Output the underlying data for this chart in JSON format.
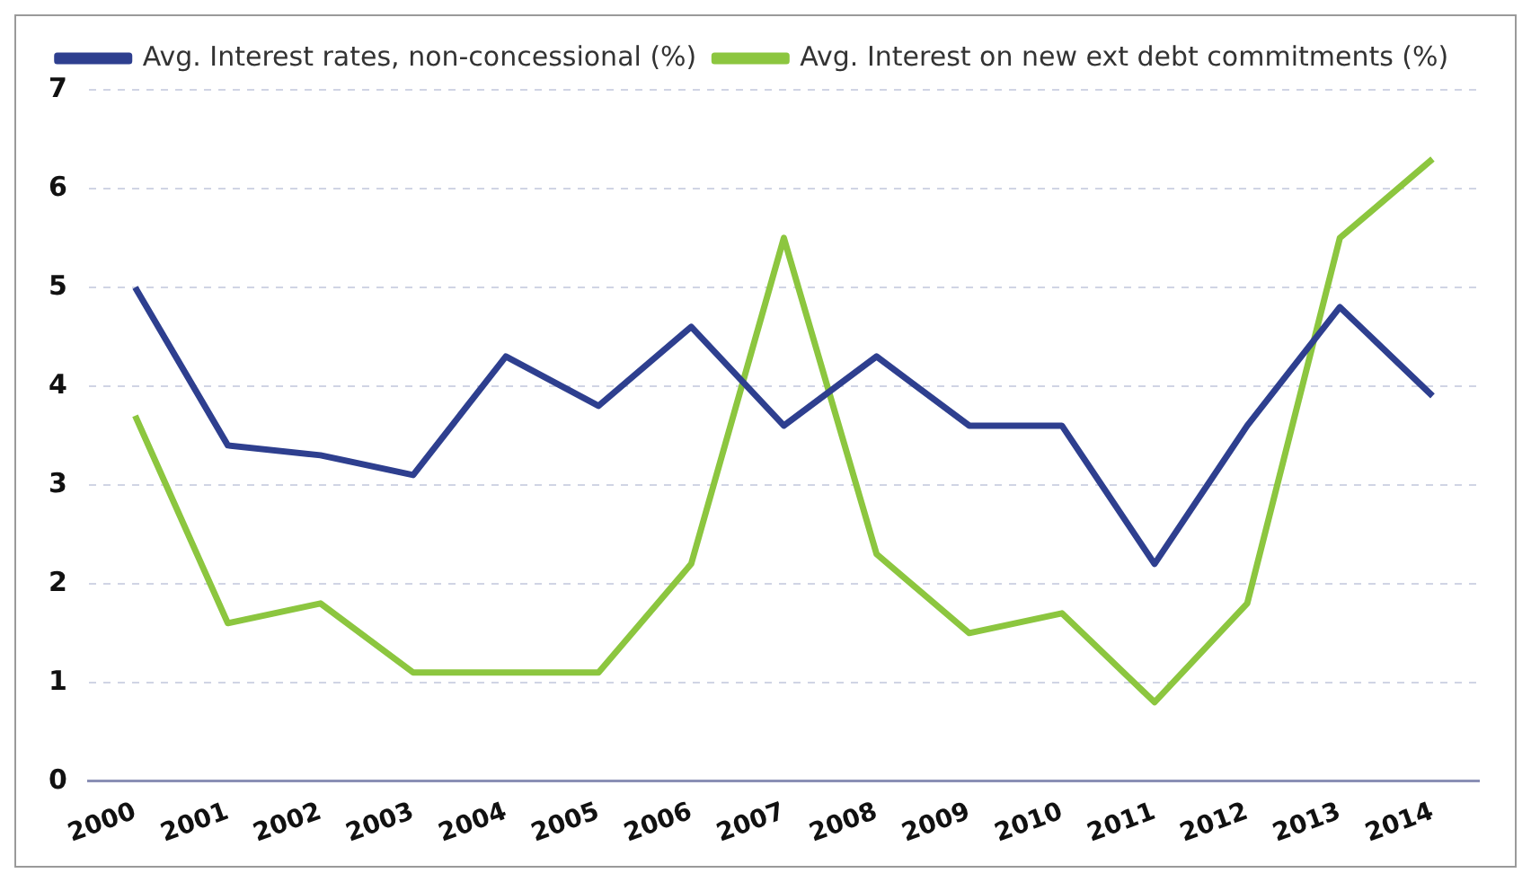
{
  "chart_data": {
    "type": "line",
    "categories": [
      "2000",
      "2001",
      "2002",
      "2003",
      "2004",
      "2005",
      "2006",
      "2007",
      "2008",
      "2009",
      "2010",
      "2011",
      "2012",
      "2013",
      "2014"
    ],
    "series": [
      {
        "name": "Avg. Interest rates, non-concessional (%)",
        "color": "#2e3f8f",
        "values": [
          5.0,
          3.4,
          3.3,
          3.1,
          4.3,
          3.8,
          4.6,
          3.6,
          4.3,
          3.6,
          3.6,
          2.2,
          3.6,
          4.8,
          3.9
        ]
      },
      {
        "name": "Avg. Interest on new ext debt commitments (%)",
        "color": "#8cc63f",
        "values": [
          3.7,
          1.6,
          1.8,
          1.1,
          1.1,
          1.1,
          2.2,
          5.5,
          2.3,
          1.5,
          1.7,
          0.8,
          1.8,
          5.5,
          6.3
        ]
      }
    ],
    "ylim": [
      0,
      7
    ],
    "yticks": [
      0,
      1,
      2,
      3,
      4,
      5,
      6,
      7
    ],
    "grid": "y",
    "legend": "top",
    "marker": "none",
    "line_style": "solid"
  }
}
